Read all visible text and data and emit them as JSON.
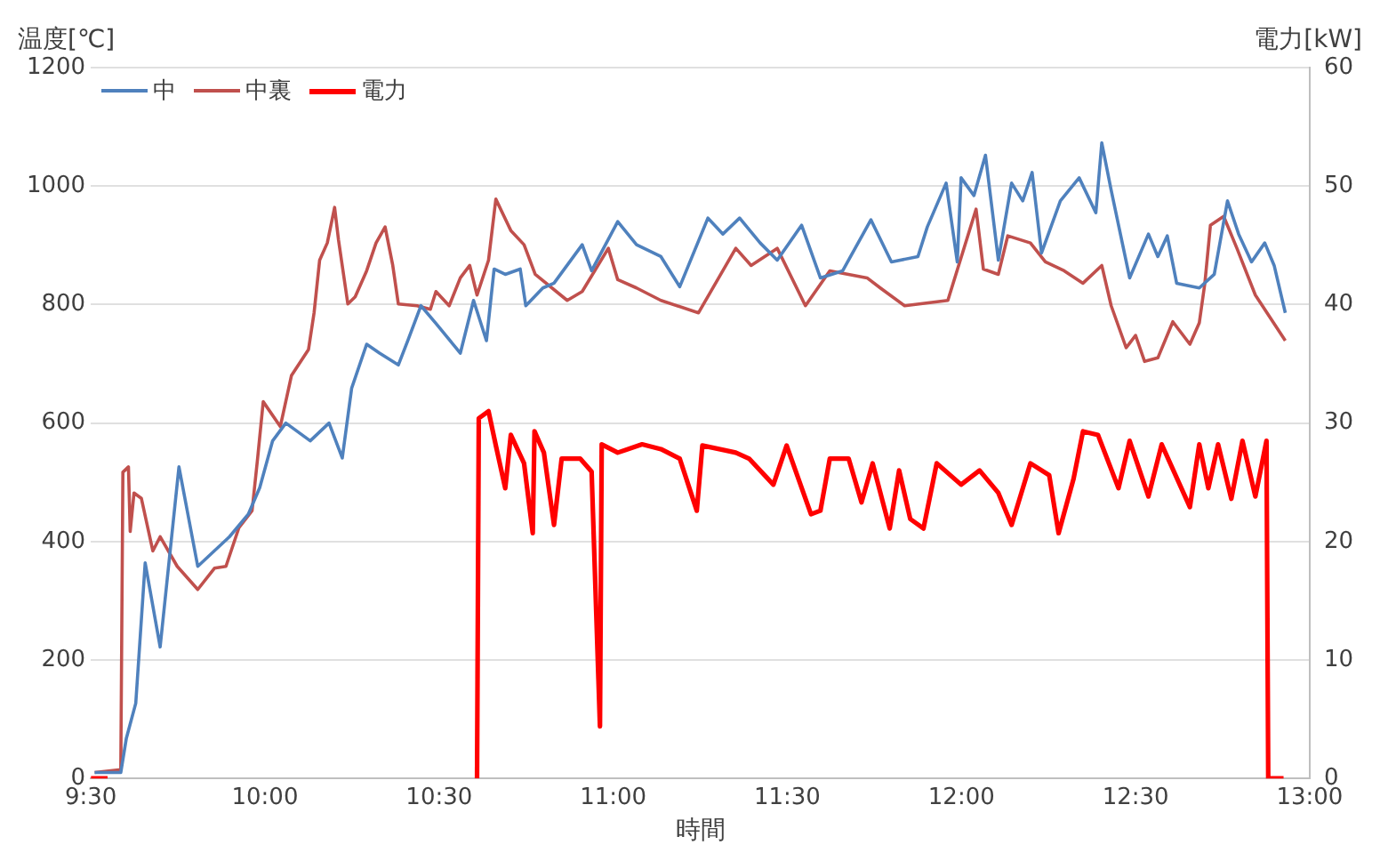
{
  "chart_data": {
    "type": "line",
    "xlabel": "時間",
    "ylabel": "温度[℃]",
    "y2label": "電力[kW]",
    "xlim": [
      9.5,
      13
    ],
    "xticks": [
      {
        "value": 9.5,
        "label": "9:30"
      },
      {
        "value": 10,
        "label": "10:00"
      },
      {
        "value": 10.5,
        "label": "10:30"
      },
      {
        "value": 11,
        "label": "11:00"
      },
      {
        "value": 11.5,
        "label": "11:30"
      },
      {
        "value": 12,
        "label": "12:00"
      },
      {
        "value": 12.5,
        "label": "12:30"
      },
      {
        "value": 13,
        "label": "13:00"
      }
    ],
    "ylim": [
      0,
      1200
    ],
    "yticks": [
      0,
      200,
      400,
      600,
      800,
      1000,
      1200
    ],
    "y2lim": [
      0,
      60
    ],
    "y2ticks": [
      0,
      10,
      20,
      30,
      40,
      50,
      60
    ],
    "grid": "y",
    "legend": "top left",
    "marker": "none",
    "line_style": "solid",
    "series": [
      {
        "name": "中",
        "color": "#4f81bd",
        "x": [
          9.511,
          9.586,
          9.602,
          9.629,
          9.656,
          9.699,
          9.753,
          9.807,
          9.898,
          9.952,
          9.985,
          10.022,
          10.06,
          10.13,
          10.184,
          10.222,
          10.249,
          10.292,
          10.329,
          10.383,
          10.41,
          10.448,
          10.491,
          10.561,
          10.599,
          10.636,
          10.658,
          10.69,
          10.733,
          10.749,
          10.798,
          10.83,
          10.911,
          10.938,
          11.013,
          11.067,
          11.137,
          11.191,
          11.272,
          11.315,
          11.363,
          11.422,
          11.471,
          11.541,
          11.595,
          11.659,
          11.74,
          11.799,
          11.875,
          11.902,
          11.956,
          11.988,
          11.999,
          12.036,
          12.069,
          12.106,
          12.144,
          12.176,
          12.203,
          12.23,
          12.284,
          12.338,
          12.386,
          12.403,
          12.43,
          12.483,
          12.537,
          12.564,
          12.591,
          12.618,
          12.683,
          12.726,
          12.764,
          12.796,
          12.833,
          12.871,
          12.898,
          12.93
        ],
        "values": [
          10,
          10,
          68,
          127,
          364,
          222,
          526,
          358,
          408,
          446,
          491,
          570,
          600,
          570,
          600,
          541,
          659,
          733,
          718,
          698,
          739,
          798,
          768,
          718,
          807,
          739,
          860,
          851,
          860,
          798,
          828,
          836,
          901,
          857,
          940,
          901,
          881,
          830,
          946,
          919,
          946,
          904,
          875,
          934,
          845,
          857,
          943,
          872,
          881,
          931,
          1005,
          872,
          1014,
          984,
          1052,
          875,
          1005,
          975,
          1023,
          887,
          975,
          1014,
          955,
          1073,
          993,
          845,
          919,
          881,
          916,
          836,
          828,
          851,
          975,
          919,
          872,
          904,
          866,
          786
        ]
      },
      {
        "name": "中裏",
        "color": "#c0504d",
        "x": [
          9.511,
          9.586,
          9.592,
          9.608,
          9.613,
          9.624,
          9.645,
          9.678,
          9.699,
          9.748,
          9.807,
          9.855,
          9.888,
          9.925,
          9.963,
          9.979,
          9.995,
          10.044,
          10.076,
          10.125,
          10.141,
          10.157,
          10.179,
          10.2,
          10.211,
          10.238,
          10.259,
          10.292,
          10.319,
          10.345,
          10.367,
          10.383,
          10.437,
          10.475,
          10.491,
          10.529,
          10.561,
          10.588,
          10.609,
          10.642,
          10.663,
          10.706,
          10.744,
          10.776,
          10.868,
          10.911,
          10.986,
          11.013,
          11.067,
          11.137,
          11.245,
          11.352,
          11.396,
          11.471,
          11.552,
          11.622,
          11.729,
          11.767,
          11.837,
          11.961,
          12.042,
          12.063,
          12.106,
          12.133,
          12.198,
          12.241,
          12.295,
          12.349,
          12.403,
          12.43,
          12.473,
          12.5,
          12.526,
          12.564,
          12.607,
          12.656,
          12.683,
          12.699,
          12.715,
          12.753,
          12.791,
          12.844,
          12.93
        ],
        "values": [
          10,
          15,
          517,
          526,
          417,
          482,
          473,
          384,
          408,
          358,
          319,
          355,
          358,
          423,
          452,
          541,
          636,
          594,
          680,
          724,
          786,
          875,
          904,
          964,
          910,
          801,
          813,
          857,
          904,
          931,
          866,
          801,
          798,
          792,
          822,
          798,
          845,
          866,
          816,
          875,
          978,
          925,
          901,
          851,
          807,
          822,
          895,
          842,
          828,
          807,
          786,
          895,
          866,
          895,
          798,
          857,
          845,
          828,
          798,
          807,
          961,
          860,
          851,
          916,
          904,
          872,
          857,
          836,
          866,
          798,
          727,
          748,
          704,
          710,
          771,
          733,
          769,
          836,
          934,
          949,
          895,
          816,
          739
        ]
      },
      {
        "name": "電力",
        "color": "#ff0000",
        "axis": "y2",
        "x": [
          9.5,
          9.548,
          10.0,
          10.609,
          10.614,
          10.642,
          10.663,
          10.69,
          10.706,
          10.744,
          10.769,
          10.774,
          10.801,
          10.83,
          10.852,
          10.905,
          10.938,
          10.962,
          10.967,
          11.013,
          11.083,
          11.137,
          11.191,
          11.24,
          11.256,
          11.352,
          11.39,
          11.46,
          11.498,
          11.568,
          11.595,
          11.622,
          11.676,
          11.713,
          11.745,
          11.794,
          11.821,
          11.853,
          11.891,
          11.929,
          11.999,
          12.052,
          12.106,
          12.144,
          12.198,
          12.252,
          12.279,
          12.322,
          12.349,
          12.392,
          12.451,
          12.483,
          12.537,
          12.575,
          12.656,
          12.683,
          12.709,
          12.737,
          12.775,
          12.807,
          12.844,
          12.876,
          12.881,
          12.925
        ],
        "values": [
          0,
          0,
          null,
          0,
          30.4,
          31.0,
          28.1,
          24.5,
          29.0,
          26.6,
          20.7,
          29.3,
          27.5,
          21.4,
          27.0,
          27.0,
          25.9,
          4.4,
          28.2,
          27.5,
          28.2,
          27.8,
          27.0,
          22.6,
          28.1,
          27.5,
          27.0,
          24.8,
          28.1,
          22.3,
          22.6,
          27.0,
          27.0,
          23.3,
          26.6,
          21.1,
          26.0,
          21.9,
          21.1,
          26.6,
          24.8,
          26.0,
          24.1,
          21.4,
          26.6,
          25.6,
          20.7,
          25.3,
          29.3,
          29.0,
          24.5,
          28.5,
          23.8,
          28.2,
          22.9,
          28.2,
          24.5,
          28.2,
          23.6,
          28.5,
          23.8,
          28.5,
          0,
          0
        ]
      }
    ]
  }
}
